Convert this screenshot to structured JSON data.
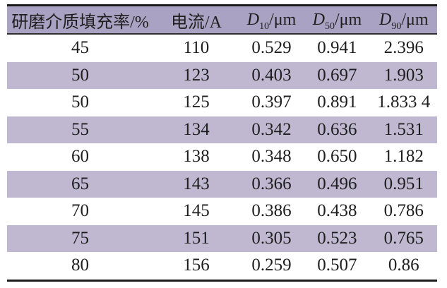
{
  "page": {
    "background": "#ffffff"
  },
  "table": {
    "colors": {
      "header_bg": "#aaa2c2",
      "alt_row_bg": "#c0b8d0",
      "rule_color": "#1b1b1b",
      "text_color": "#1e1e1e"
    },
    "columns": [
      {
        "key": "filling-rate",
        "label": "研磨介质填充率/%"
      },
      {
        "key": "current",
        "label": "电流/A"
      },
      {
        "key": "d10",
        "base": "D",
        "sub": "10",
        "unit": "/μm"
      },
      {
        "key": "d50",
        "base": "D",
        "sub": "50",
        "unit": "/μm"
      },
      {
        "key": "d90",
        "base": "D",
        "sub": "90",
        "unit": "/μm"
      }
    ],
    "rows": [
      [
        "45",
        "110",
        "0.529",
        "0.941",
        "2.396"
      ],
      [
        "50",
        "123",
        "0.403",
        "0.697",
        "1.903"
      ],
      [
        "50",
        "125",
        "0.397",
        "0.891",
        "1.833 4"
      ],
      [
        "55",
        "134",
        "0.342",
        "0.636",
        "1.531"
      ],
      [
        "60",
        "138",
        "0.348",
        "0.650",
        "1.182"
      ],
      [
        "65",
        "143",
        "0.366",
        "0.496",
        "0.951"
      ],
      [
        "70",
        "145",
        "0.386",
        "0.438",
        "0.786"
      ],
      [
        "75",
        "151",
        "0.305",
        "0.523",
        "0.765"
      ],
      [
        "80",
        "156",
        "0.259",
        "0.507",
        "0.86"
      ]
    ]
  }
}
